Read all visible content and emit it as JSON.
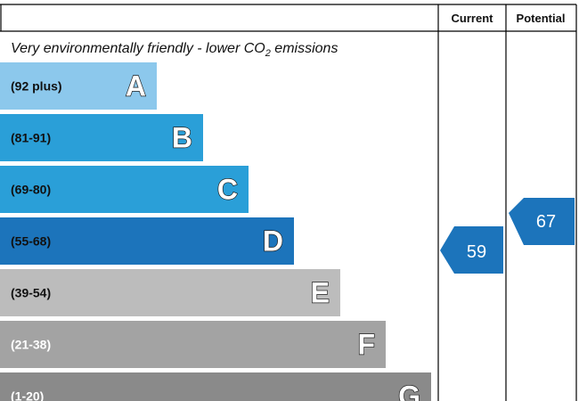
{
  "header": {
    "current": "Current",
    "potential": "Potential"
  },
  "subtitle": {
    "before": "Very environmentally friendly - lower CO",
    "sub": "2",
    "after": " emissions"
  },
  "bands": [
    {
      "range": "(92 plus)",
      "letter": "A"
    },
    {
      "range": "(81-91)",
      "letter": "B"
    },
    {
      "range": "(69-80)",
      "letter": "C"
    },
    {
      "range": "(55-68)",
      "letter": "D"
    },
    {
      "range": "(39-54)",
      "letter": "E"
    },
    {
      "range": "(21-38)",
      "letter": "F"
    },
    {
      "range": "(1-20)",
      "letter": "G"
    }
  ],
  "current": 59,
  "potential": 67
}
